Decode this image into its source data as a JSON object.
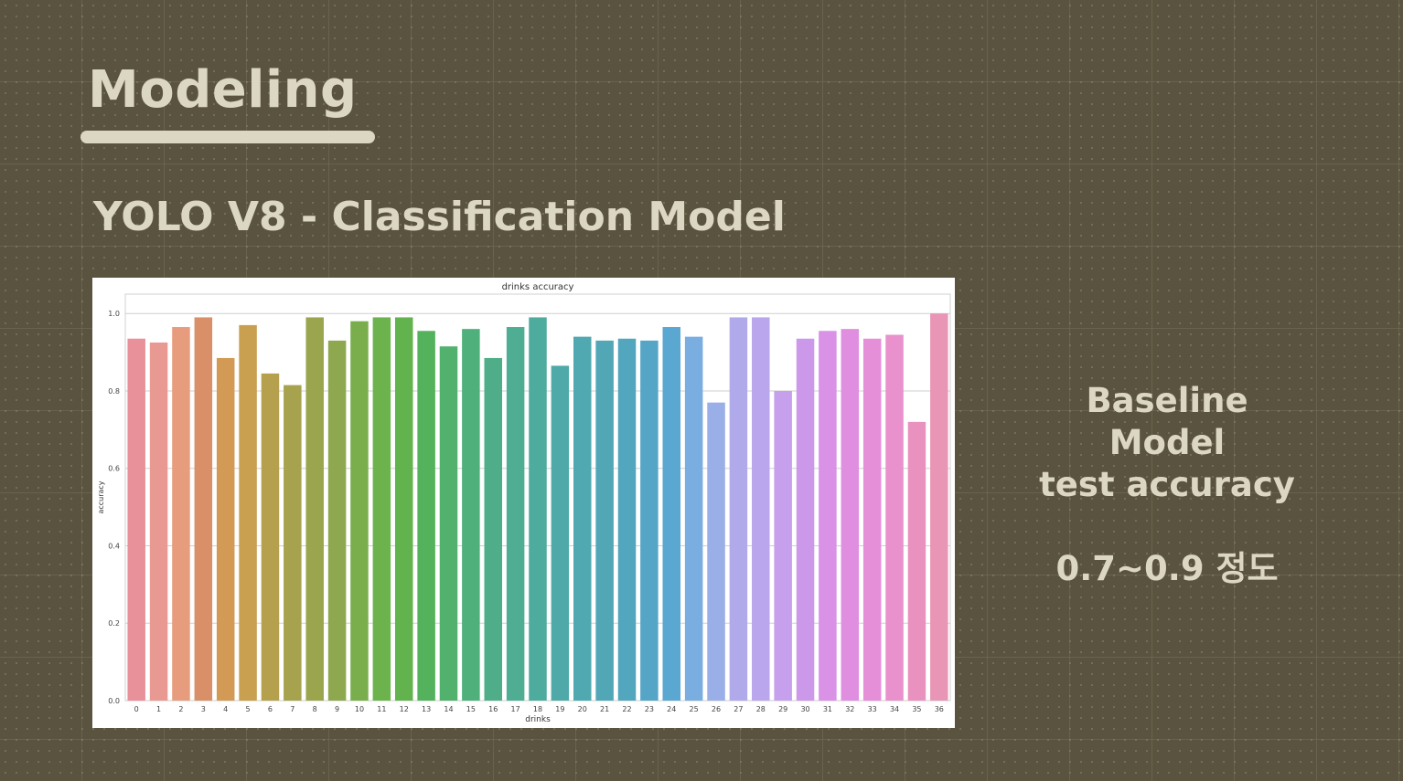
{
  "slide": {
    "title": "Modeling",
    "subtitle": "YOLO V8 - Classification Model",
    "note": {
      "line1": "Baseline",
      "line2": "Model",
      "line3": "test accuracy",
      "line4": "0.7~0.9 정도"
    },
    "colors": {
      "background": "#5a533f",
      "text": "#dcd7c3"
    }
  },
  "chart_data": {
    "type": "bar",
    "title": "drinks accuracy",
    "xlabel": "drinks",
    "ylabel": "accuracy",
    "ylim": [
      0,
      1.05
    ],
    "yticks": [
      "0.0",
      "0.2",
      "0.4",
      "0.6",
      "0.8",
      "1.0"
    ],
    "ytick_values": [
      0,
      0.2,
      0.4,
      0.6,
      0.8,
      1.0
    ],
    "grid": "horizontal",
    "categories": [
      "0",
      "1",
      "2",
      "3",
      "4",
      "5",
      "6",
      "7",
      "8",
      "9",
      "10",
      "11",
      "12",
      "13",
      "14",
      "15",
      "16",
      "17",
      "18",
      "19",
      "20",
      "21",
      "22",
      "23",
      "24",
      "25",
      "26",
      "27",
      "28",
      "29",
      "30",
      "31",
      "32",
      "33",
      "34",
      "35",
      "36"
    ],
    "values": [
      0.935,
      0.925,
      0.965,
      0.99,
      0.885,
      0.97,
      0.845,
      0.815,
      0.99,
      0.93,
      0.98,
      0.99,
      0.99,
      0.955,
      0.915,
      0.96,
      0.885,
      0.965,
      0.99,
      0.865,
      0.94,
      0.93,
      0.935,
      0.93,
      0.965,
      0.94,
      0.77,
      0.99,
      0.99,
      0.8,
      0.935,
      0.955,
      0.96,
      0.935,
      0.945,
      0.72,
      1.0
    ],
    "colors": [
      "#e8919a",
      "#e89a92",
      "#e79c7e",
      "#d98f68",
      "#d29a55",
      "#c9a050",
      "#b5a04e",
      "#a6a24e",
      "#9aa54e",
      "#8ea84f",
      "#7aae4d",
      "#6cb24d",
      "#62b24e",
      "#55b25c",
      "#52b16d",
      "#50b07c",
      "#4fae89",
      "#4fad94",
      "#4eac9f",
      "#4fa9a8",
      "#50a8b0",
      "#51a7b6",
      "#52a6bd",
      "#55a6c6",
      "#5aa7d2",
      "#7aaee1",
      "#9aaee7",
      "#b0a9ea",
      "#b9a6ec",
      "#c6a0ec",
      "#cc98ea",
      "#d992e6",
      "#df8ee0",
      "#e58fd8",
      "#e891cc",
      "#e992c0",
      "#e995b5"
    ]
  }
}
